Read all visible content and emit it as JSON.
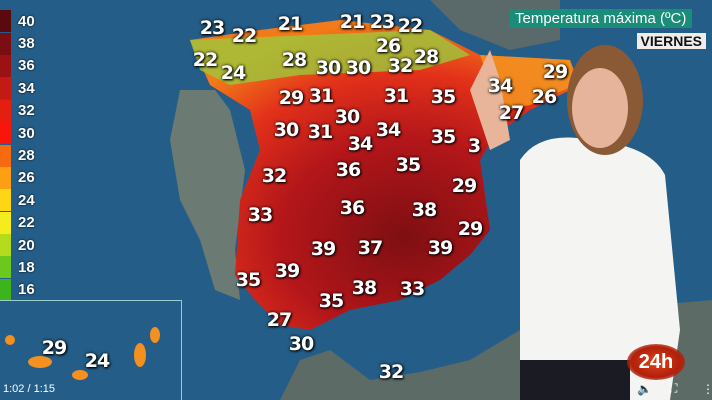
{
  "overlay": {
    "title": "Temperatura máxima (ºC)",
    "day": "VIERNES",
    "logo": "24h"
  },
  "legend": [
    {
      "label": "40",
      "color": "#5a0a0e"
    },
    {
      "label": "38",
      "color": "#7a0e12"
    },
    {
      "label": "36",
      "color": "#9a1214"
    },
    {
      "label": "34",
      "color": "#c41a16"
    },
    {
      "label": "32",
      "color": "#e51e12"
    },
    {
      "label": "30",
      "color": "#f8160c"
    },
    {
      "label": "28",
      "color": "#f86a10"
    },
    {
      "label": "26",
      "color": "#fba012"
    },
    {
      "label": "24",
      "color": "#fed613"
    },
    {
      "label": "22",
      "color": "#f4ec1c"
    },
    {
      "label": "20",
      "color": "#b4dc1c"
    },
    {
      "label": "18",
      "color": "#6cc81c"
    },
    {
      "label": "16",
      "color": "#3cb41c"
    }
  ],
  "temperatures": [
    "23",
    "22",
    "21",
    "21",
    "23",
    "22",
    "26",
    "22",
    "24",
    "28",
    "30",
    "30",
    "32",
    "28",
    "34",
    "29",
    "26",
    "27",
    "29",
    "31",
    "31",
    "35",
    "30",
    "30",
    "31",
    "34",
    "35",
    "3",
    "34",
    "35",
    "36",
    "29",
    "32",
    "36",
    "38",
    "33",
    "29",
    "39",
    "37",
    "39",
    "35",
    "39",
    "38",
    "33",
    "35",
    "27",
    "30",
    "29",
    "24",
    "32"
  ],
  "player": {
    "time": "1:02 / 1:15",
    "volume_icon": "volume-icon",
    "fullscreen_icon": "fullscreen-icon",
    "menu_icon": "more-icon"
  }
}
